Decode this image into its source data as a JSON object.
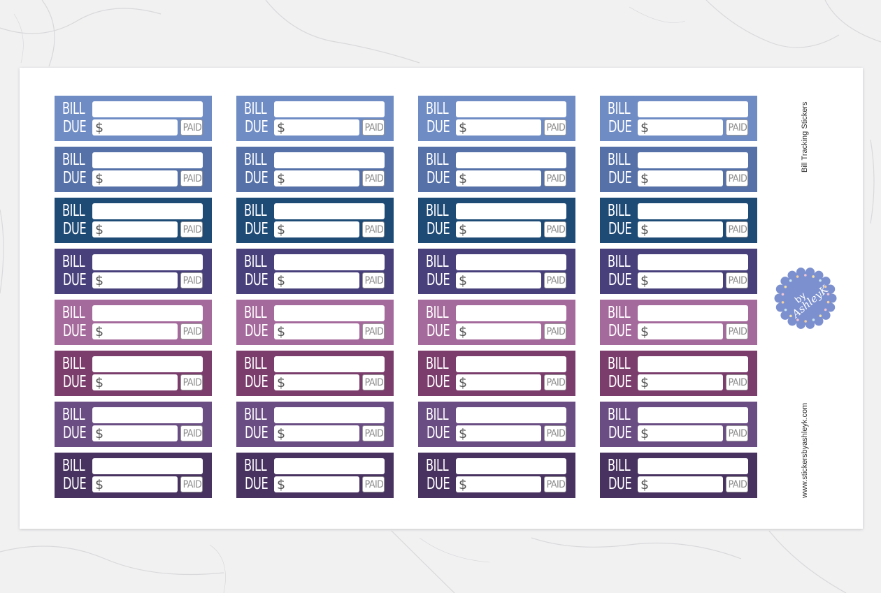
{
  "sticker_text": {
    "bill": "BILL",
    "due": "DUE",
    "dollar": "$",
    "paid": "PAID"
  },
  "rows": [
    {
      "color": "#6f8cc4"
    },
    {
      "color": "#5571a8"
    },
    {
      "color": "#1e4a76"
    },
    {
      "color": "#47407a"
    },
    {
      "color": "#a56a9c"
    },
    {
      "color": "#7a3d6c"
    },
    {
      "color": "#6a4d83"
    },
    {
      "color": "#48325f"
    }
  ],
  "columns": 4,
  "side": {
    "title": "Bill Tracking Stickers",
    "website": "www.stickersbyashleyk.com"
  },
  "logo": {
    "text_line1": "by",
    "text_line2": "AshleyK",
    "color": "#7c90cf"
  }
}
